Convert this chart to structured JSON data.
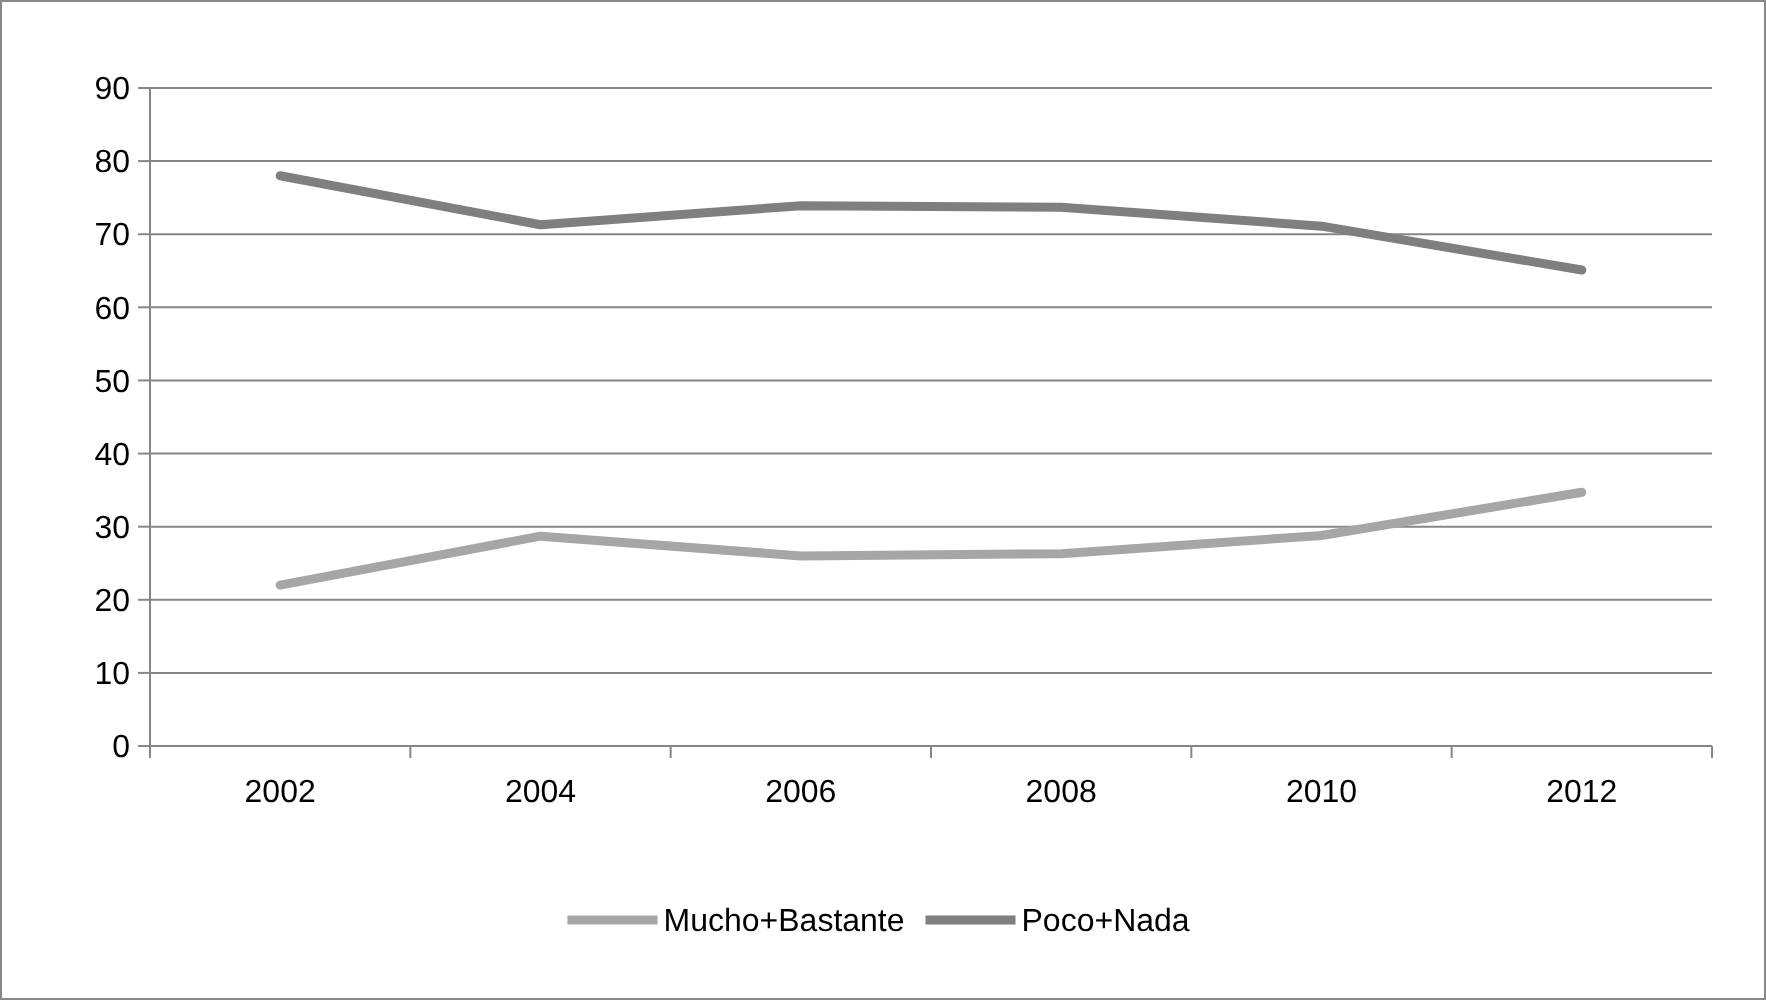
{
  "chart_data": {
    "type": "line",
    "categories": [
      "2002",
      "2004",
      "2006",
      "2008",
      "2010",
      "2012"
    ],
    "series": [
      {
        "name": "Mucho+Bastante",
        "color": "#a6a6a6",
        "values": [
          22,
          28.7,
          26,
          26.3,
          28.8,
          34.7
        ]
      },
      {
        "name": "Poco+Nada",
        "color": "#7f7f7f",
        "values": [
          78,
          71.3,
          73.9,
          73.7,
          71.1,
          65.1
        ]
      }
    ],
    "ylim": [
      0,
      90
    ],
    "yticks": [
      0,
      10,
      20,
      30,
      40,
      50,
      60,
      70,
      80,
      90
    ],
    "grid": "y",
    "legend": "bottom",
    "marker": "none",
    "line_style": "solid"
  }
}
